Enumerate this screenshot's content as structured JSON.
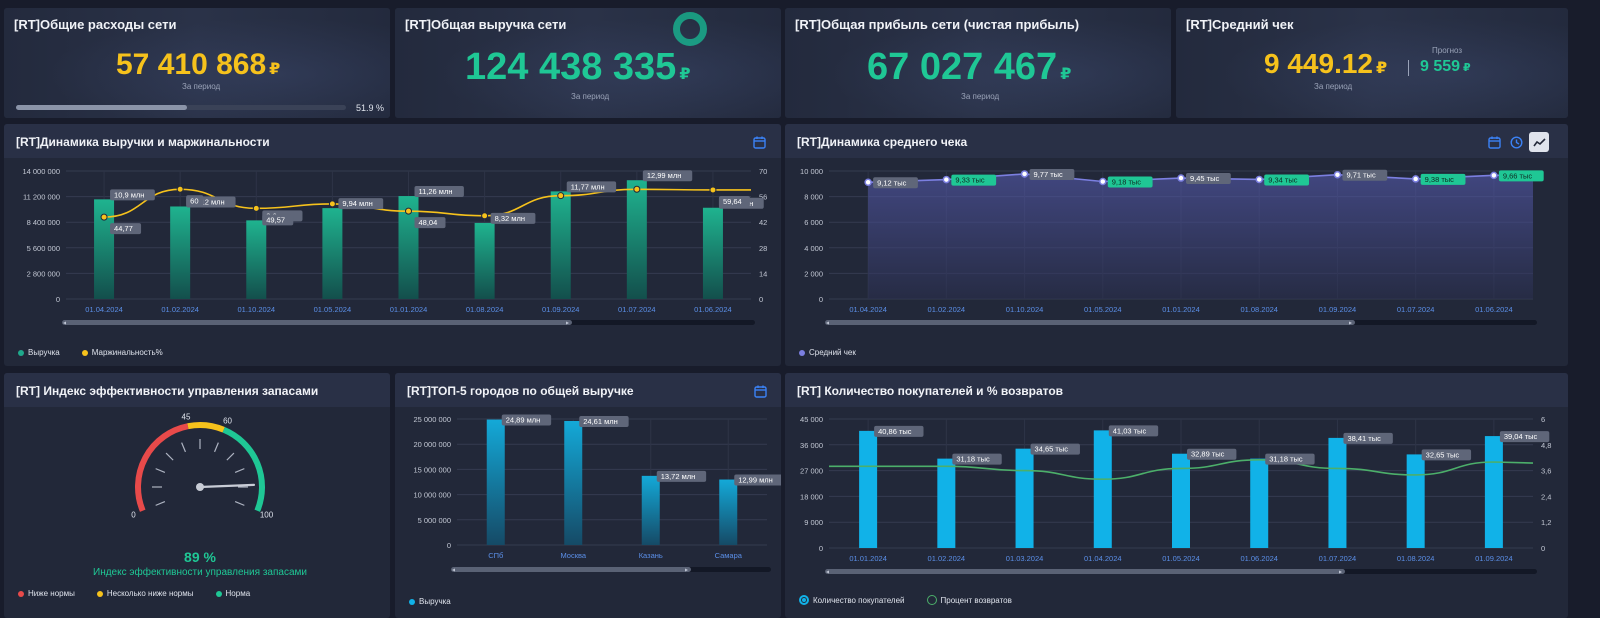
{
  "kpis": {
    "expenses": {
      "title": "[RT]Общие расходы сети",
      "value": "57 410 868",
      "currency": "₽",
      "sub": "За период",
      "progress_percent": 51.9,
      "progress_label": "51.9 %"
    },
    "revenue": {
      "title": "[RT]Общая выручка сети",
      "value": "124 438 335",
      "currency": "₽",
      "sub": "За период"
    },
    "profit": {
      "title": "[RT]Общая прибыль сети (чистая прибыль)",
      "value": "67 027 467",
      "currency": "₽",
      "sub": "За период"
    },
    "avg_check": {
      "title": "[RT]Средний чек",
      "value": "9 449.12",
      "currency": "₽",
      "sub": "За период",
      "forecast_label": "Прогноз",
      "forecast_value": "9 559",
      "forecast_currency": "₽"
    }
  },
  "colors": {
    "gold": "#f6c21c",
    "green": "#1fc795",
    "teal": "#1fa98c",
    "purple": "#7b7fe0",
    "blue": "#11b2e8",
    "accent_blue": "#3b82f6"
  },
  "icons": {
    "calendar": "calendar-icon",
    "clock": "clock-icon",
    "trend": "trend-icon"
  },
  "revenue_chart": {
    "title": "[RT]Динамика выручки и маржинальности",
    "legend": {
      "revenue": "Выручка",
      "margin": "Маржинальность%"
    }
  },
  "avgcheck_chart": {
    "title": "[RT]Динамика среднего чека",
    "legend": {
      "avg": "Средний чек"
    }
  },
  "inventory": {
    "title": "[RT] Индекс эффективности управления запасами",
    "value_label": "89 %",
    "caption": "Индекс эффективности управления запасами",
    "gauge_value": 89,
    "scale": [
      "0",
      "45",
      "60",
      "100"
    ],
    "legend": {
      "low": "Ниже нормы",
      "mid": "Несколько ниже нормы",
      "ok": "Норма"
    }
  },
  "top_cities": {
    "title": "[RT]ТОП-5 городов по общей выручке",
    "legend": {
      "revenue": "Выручка"
    }
  },
  "buyers": {
    "title": "[RT] Количество покупателей и % возвратов",
    "legend": {
      "buyers": "Количество покупателей",
      "returns": "Процент возвратов"
    }
  },
  "chart_data": [
    {
      "type": "bar",
      "title": "[RT]Динамика выручки и маржинальности",
      "categories": [
        "01.04.2024",
        "01.02.2024",
        "01.10.2024",
        "01.05.2024",
        "01.01.2024",
        "01.08.2024",
        "01.09.2024",
        "01.07.2024",
        "01.06.2024"
      ],
      "y_ticks": [
        "14 000 000",
        "11 200 000",
        "8 400 000",
        "5 600 000",
        "2 800 000",
        "0"
      ],
      "y2_ticks": [
        "70",
        "56",
        "42",
        "28",
        "14",
        "0"
      ],
      "ylim": [
        0,
        14000000
      ],
      "y2lim": [
        0,
        70
      ],
      "series": [
        {
          "name": "Выручка",
          "type": "bar",
          "values": [
            10900000,
            10120000,
            8600000,
            9940000,
            11260000,
            8320000,
            11770000,
            12990000,
            9980000
          ],
          "labels": [
            "10,9 млн",
            "10,12 млн",
            "8,6 млн",
            "9,94 млн",
            "11,26 млн",
            "8,32 млн",
            "11,77 млн",
            "12,99 млн",
            "9,98 млн"
          ]
        },
        {
          "name": "Маржинальность%",
          "type": "line",
          "values": [
            44.77,
            60,
            49.57,
            52,
            48.04,
            45.5,
            56.5,
            60,
            59.64
          ],
          "labels": [
            "44,77",
            "60",
            "49,57",
            "",
            "48,04",
            "",
            "",
            "",
            "59,64"
          ]
        }
      ]
    },
    {
      "type": "line",
      "title": "[RT]Динамика среднего чека",
      "categories": [
        "01.04.2024",
        "01.02.2024",
        "01.10.2024",
        "01.05.2024",
        "01.01.2024",
        "01.08.2024",
        "01.09.2024",
        "01.07.2024",
        "01.06.2024"
      ],
      "y_ticks": [
        "10 000",
        "8 000",
        "6 000",
        "4 000",
        "2 000",
        "0"
      ],
      "ylim": [
        0,
        10000
      ],
      "series": [
        {
          "name": "Средний чек",
          "values": [
            9120,
            9330,
            9770,
            9180,
            9450,
            9340,
            9710,
            9380,
            9660
          ],
          "labels": [
            "9,12 тыс",
            "9,33 тыс",
            "9,77 тыс",
            "9,18 тыс",
            "9,45 тыс",
            "9,34 тыс",
            "9,71 тыс",
            "9,38 тыс",
            "9,66 тыс"
          ]
        }
      ]
    },
    {
      "type": "bar",
      "title": "[RT]ТОП-5 городов по общей выручке",
      "categories": [
        "СПб",
        "Москва",
        "Казань",
        "Самара"
      ],
      "y_ticks": [
        "25 000 000",
        "20 000 000",
        "15 000 000",
        "10 000 000",
        "5 000 000",
        "0"
      ],
      "ylim": [
        0,
        25000000
      ],
      "series": [
        {
          "name": "Выручка",
          "values": [
            24890000,
            24610000,
            13720000,
            12990000
          ],
          "labels": [
            "24,89 млн",
            "24,61 млн",
            "13,72 млн",
            "12,99 млн"
          ]
        }
      ]
    },
    {
      "type": "bar",
      "title": "[RT] Количество покупателей и % возвратов",
      "categories": [
        "01.01.2024",
        "01.02.2024",
        "01.03.2024",
        "01.04.2024",
        "01.05.2024",
        "01.06.2024",
        "01.07.2024",
        "01.08.2024",
        "01.09.2024"
      ],
      "y_ticks": [
        "45 000",
        "36 000",
        "27 000",
        "18 000",
        "9 000",
        "0"
      ],
      "y2_ticks": [
        "6",
        "4,8",
        "3,6",
        "2,4",
        "1,2",
        "0"
      ],
      "ylim": [
        0,
        45000
      ],
      "y2lim": [
        0,
        6
      ],
      "series": [
        {
          "name": "Количество покупателей",
          "type": "bar",
          "values": [
            40860,
            31180,
            34650,
            41030,
            32890,
            31180,
            38410,
            32650,
            39040
          ],
          "labels": [
            "40,86 тыс",
            "31,18 тыс",
            "34,65 тыс",
            "41,03 тыс",
            "32,89 тыс",
            "31,18 тыс",
            "38,41 тыс",
            "32,65 тыс",
            "39,04 тыс"
          ]
        },
        {
          "name": "Процент возвратов",
          "type": "line",
          "values": [
            3.8,
            3.8,
            3.6,
            3.2,
            3.7,
            4.1,
            3.7,
            3.4,
            4.0
          ]
        }
      ]
    }
  ]
}
